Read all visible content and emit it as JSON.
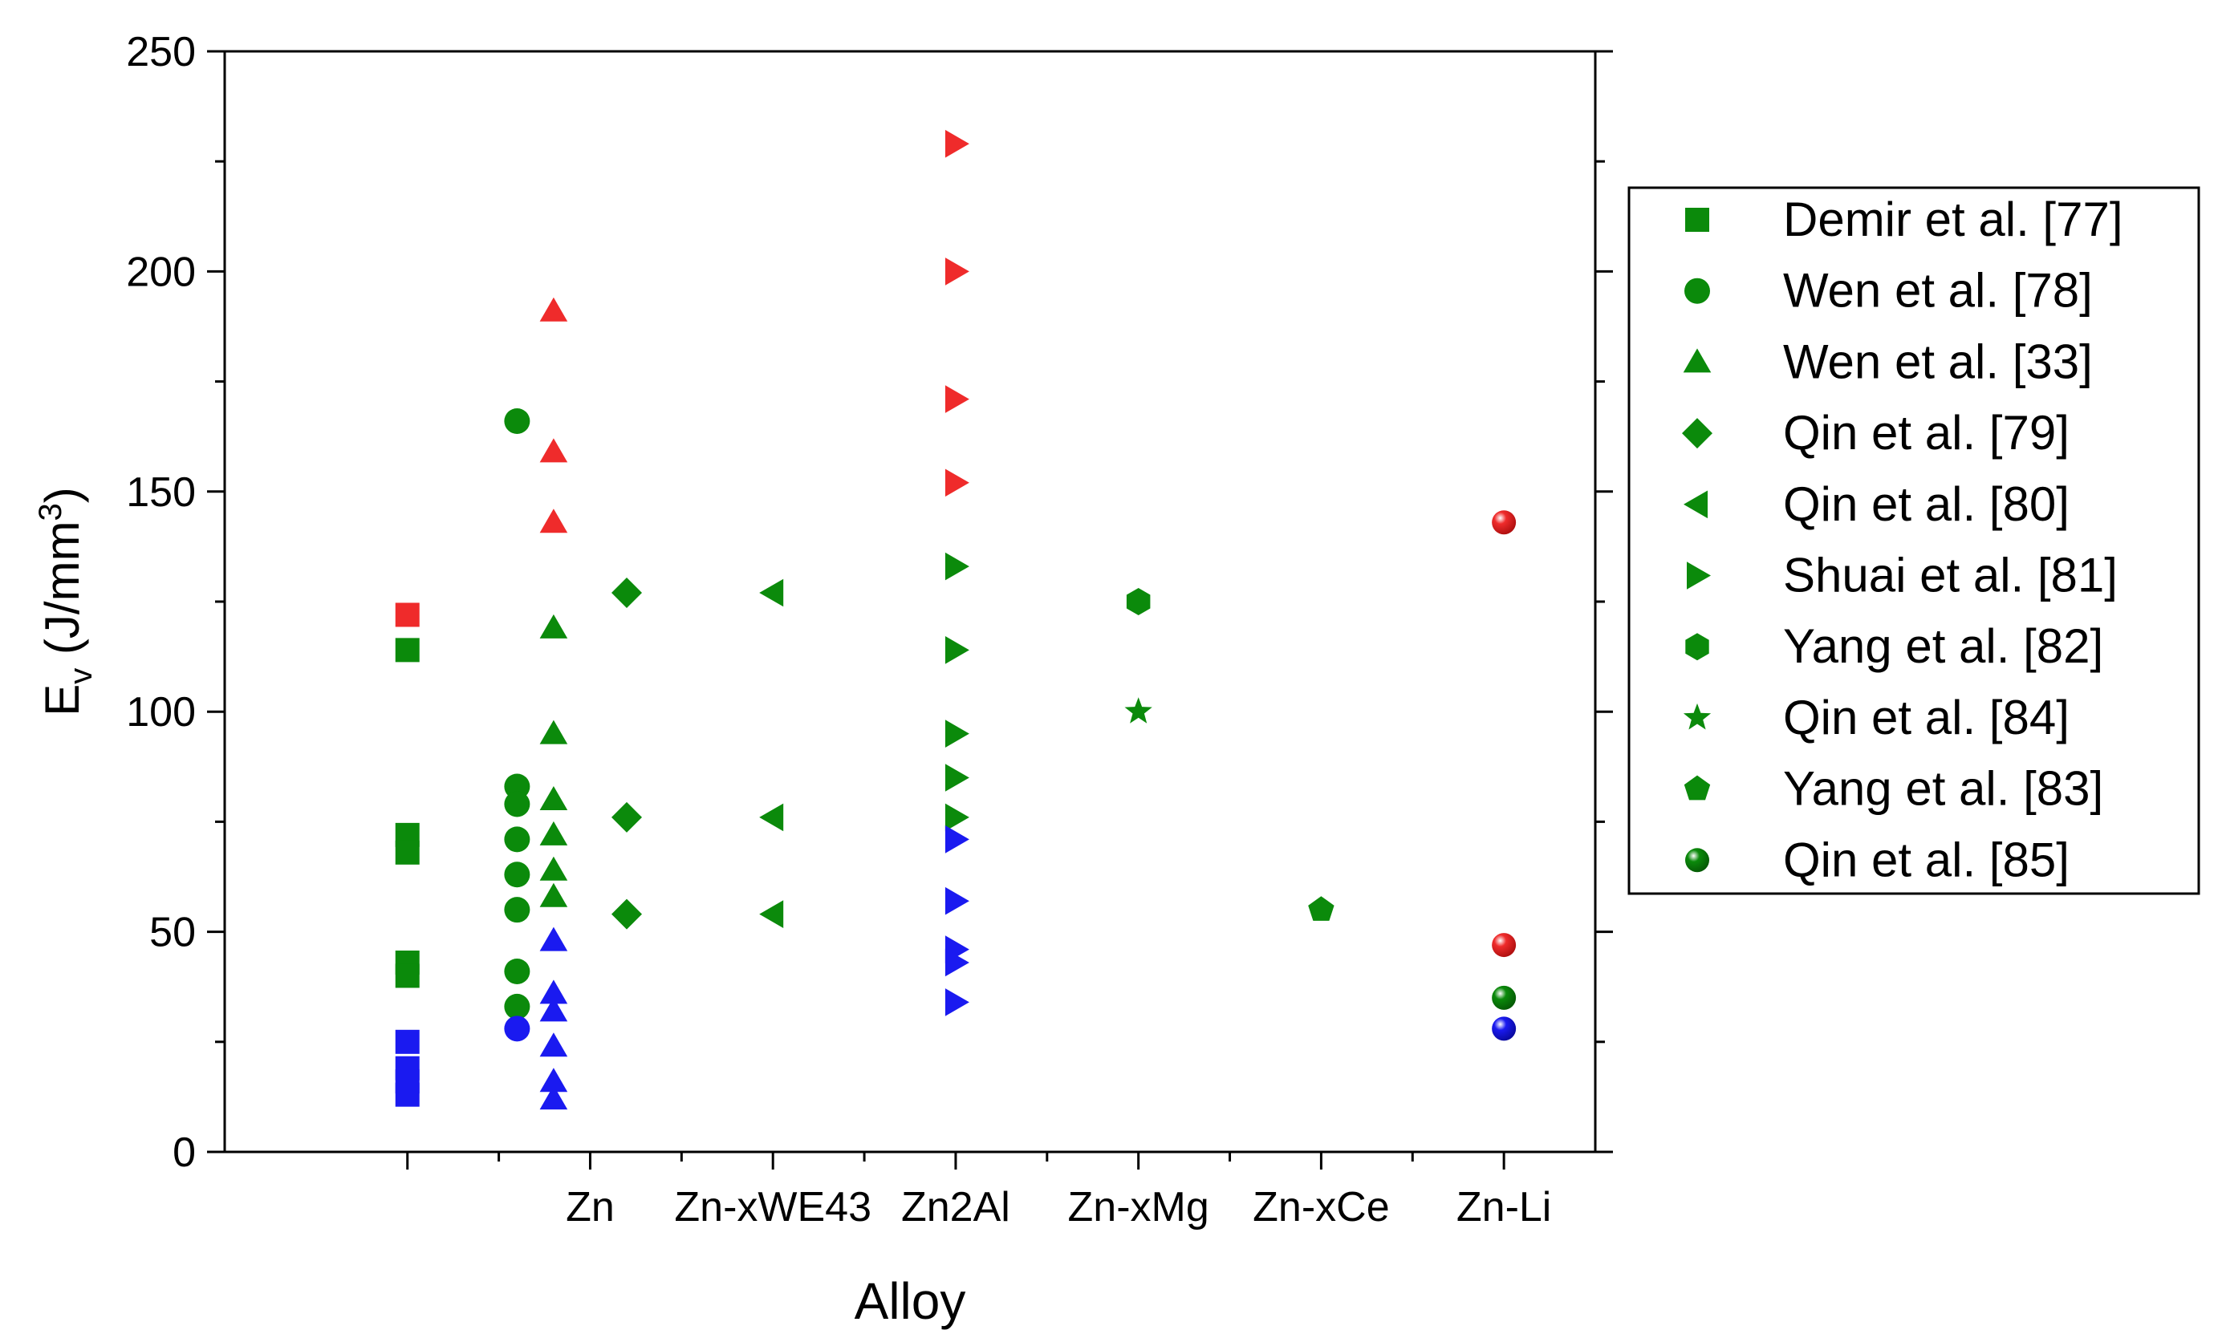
{
  "chart_data": {
    "type": "scatter",
    "xlabel": "Alloy",
    "ylabel": "E",
    "ylabel_sub": "v",
    "ylabel_unit_pre": " (J/mm",
    "ylabel_unit_sup": "3",
    "ylabel_unit_post": ")",
    "ylim": [
      0,
      250
    ],
    "yticks": [
      0,
      50,
      100,
      150,
      200,
      250
    ],
    "categories": [
      "Zn",
      "Zn-xWE43",
      "Zn2Al",
      "Zn-xMg",
      "Zn-xCe",
      "Zn-Li"
    ],
    "category_positions": [
      1,
      2,
      3,
      4,
      5,
      6
    ],
    "xlim": [
      -1.0,
      6.5
    ],
    "grid": false,
    "legend_position": "right",
    "colors": {
      "green": "#0b8a0b",
      "red": "#ef2b2b",
      "blue": "#1a1af0",
      "frame": "#000000"
    },
    "series": [
      {
        "name": "Demir et al. [77]",
        "marker": "square",
        "points": [
          {
            "x": -0.0,
            "y": 122,
            "c": "red"
          },
          {
            "x": -0.0,
            "y": 114,
            "c": "green"
          },
          {
            "x": -0.0,
            "y": 72,
            "c": "green"
          },
          {
            "x": -0.0,
            "y": 68,
            "c": "green"
          },
          {
            "x": -0.0,
            "y": 43,
            "c": "green"
          },
          {
            "x": -0.0,
            "y": 40,
            "c": "green"
          },
          {
            "x": -0.0,
            "y": 25,
            "c": "blue"
          },
          {
            "x": -0.0,
            "y": 19,
            "c": "blue"
          },
          {
            "x": -0.0,
            "y": 16,
            "c": "blue"
          },
          {
            "x": -0.0,
            "y": 13,
            "c": "blue"
          }
        ]
      },
      {
        "name": "Wen et al. [78]",
        "marker": "circle",
        "points": [
          {
            "x": 0.6,
            "y": 166,
            "c": "green"
          },
          {
            "x": 0.6,
            "y": 83,
            "c": "green"
          },
          {
            "x": 0.6,
            "y": 79,
            "c": "green"
          },
          {
            "x": 0.6,
            "y": 71,
            "c": "green"
          },
          {
            "x": 0.6,
            "y": 63,
            "c": "green"
          },
          {
            "x": 0.6,
            "y": 55,
            "c": "green"
          },
          {
            "x": 0.6,
            "y": 41,
            "c": "green"
          },
          {
            "x": 0.6,
            "y": 33,
            "c": "green"
          },
          {
            "x": 0.6,
            "y": 28,
            "c": "blue"
          }
        ]
      },
      {
        "name": "Wen et al. [33]",
        "marker": "triangle-up",
        "points": [
          {
            "x": 0.8,
            "y": 191,
            "c": "red"
          },
          {
            "x": 0.8,
            "y": 159,
            "c": "red"
          },
          {
            "x": 0.8,
            "y": 143,
            "c": "red"
          },
          {
            "x": 0.8,
            "y": 119,
            "c": "green"
          },
          {
            "x": 0.8,
            "y": 95,
            "c": "green"
          },
          {
            "x": 0.8,
            "y": 80,
            "c": "green"
          },
          {
            "x": 0.8,
            "y": 72,
            "c": "green"
          },
          {
            "x": 0.8,
            "y": 64,
            "c": "green"
          },
          {
            "x": 0.8,
            "y": 58,
            "c": "green"
          },
          {
            "x": 0.8,
            "y": 48,
            "c": "blue"
          },
          {
            "x": 0.8,
            "y": 36,
            "c": "blue"
          },
          {
            "x": 0.8,
            "y": 32,
            "c": "blue"
          },
          {
            "x": 0.8,
            "y": 24,
            "c": "blue"
          },
          {
            "x": 0.8,
            "y": 16,
            "c": "blue"
          },
          {
            "x": 0.8,
            "y": 12,
            "c": "blue"
          }
        ]
      },
      {
        "name": "Qin et al. [79]",
        "marker": "diamond",
        "points": [
          {
            "x": 1.2,
            "y": 127,
            "c": "green"
          },
          {
            "x": 1.2,
            "y": 76,
            "c": "green"
          },
          {
            "x": 1.2,
            "y": 54,
            "c": "green"
          }
        ]
      },
      {
        "name": "Qin et al. [80]",
        "marker": "triangle-left",
        "points": [
          {
            "x": 2.0,
            "y": 127,
            "c": "green"
          },
          {
            "x": 2.0,
            "y": 76,
            "c": "green"
          },
          {
            "x": 2.0,
            "y": 54,
            "c": "green"
          }
        ]
      },
      {
        "name": "Shuai et al. [81]",
        "marker": "triangle-right",
        "points": [
          {
            "x": 3.0,
            "y": 229,
            "c": "red"
          },
          {
            "x": 3.0,
            "y": 200,
            "c": "red"
          },
          {
            "x": 3.0,
            "y": 171,
            "c": "red"
          },
          {
            "x": 3.0,
            "y": 152,
            "c": "red"
          },
          {
            "x": 3.0,
            "y": 133,
            "c": "green"
          },
          {
            "x": 3.0,
            "y": 114,
            "c": "green"
          },
          {
            "x": 3.0,
            "y": 95,
            "c": "green"
          },
          {
            "x": 3.0,
            "y": 85,
            "c": "green"
          },
          {
            "x": 3.0,
            "y": 76,
            "c": "green"
          },
          {
            "x": 3.0,
            "y": 71,
            "c": "blue"
          },
          {
            "x": 3.0,
            "y": 57,
            "c": "blue"
          },
          {
            "x": 3.0,
            "y": 46,
            "c": "blue"
          },
          {
            "x": 3.0,
            "y": 43,
            "c": "blue"
          },
          {
            "x": 3.0,
            "y": 34,
            "c": "blue"
          }
        ]
      },
      {
        "name": "Yang et al. [82]",
        "marker": "hexagon",
        "points": [
          {
            "x": 4.0,
            "y": 125,
            "c": "green"
          }
        ]
      },
      {
        "name": "Qin et al. [84]",
        "marker": "star",
        "points": [
          {
            "x": 4.0,
            "y": 100,
            "c": "green"
          }
        ]
      },
      {
        "name": "Yang et al. [83]",
        "marker": "pentagon",
        "points": [
          {
            "x": 5.0,
            "y": 55,
            "c": "green"
          }
        ]
      },
      {
        "name": "Qin et al. [85]",
        "marker": "sphere",
        "points": [
          {
            "x": 6.0,
            "y": 143,
            "c": "red"
          },
          {
            "x": 6.0,
            "y": 47,
            "c": "red"
          },
          {
            "x": 6.0,
            "y": 35,
            "c": "green"
          },
          {
            "x": 6.0,
            "y": 28,
            "c": "blue"
          }
        ]
      }
    ]
  }
}
